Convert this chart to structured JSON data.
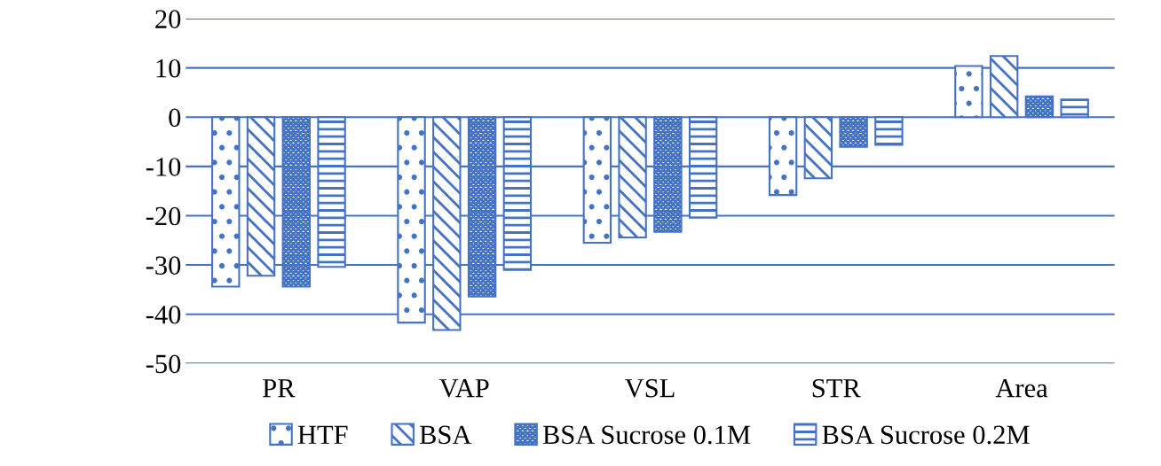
{
  "chart_data": {
    "type": "bar",
    "categories": [
      "PR",
      "VAP",
      "VSL",
      "STR",
      "Area"
    ],
    "series": [
      {
        "name": "HTF",
        "color": "#4472c4",
        "values": [
          -34.4,
          -41.7,
          -25.5,
          -15.8,
          10.4
        ]
      },
      {
        "name": "BSA",
        "color": "#4472c4",
        "values": [
          -32.2,
          -43.2,
          -24.4,
          -12.4,
          12.4
        ]
      },
      {
        "name": "BSA Sucrose 0.1M",
        "color": "#4472c4",
        "values": [
          -34.4,
          -36.4,
          -23.3,
          -6.0,
          4.2
        ]
      },
      {
        "name": "BSA Sucrose 0.2M",
        "color": "#4472c4",
        "values": [
          -30.4,
          -31.0,
          -20.4,
          -5.6,
          3.6
        ]
      }
    ],
    "ylim": [
      -50,
      20
    ],
    "yticks": [
      -50,
      -40,
      -30,
      -20,
      -10,
      0,
      10,
      20
    ],
    "grid": "y",
    "legend": "bottom"
  }
}
